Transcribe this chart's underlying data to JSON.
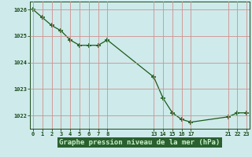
{
  "x_values": [
    0,
    1,
    2,
    3,
    4,
    5,
    6,
    7,
    8,
    13,
    14,
    15,
    16,
    17,
    21,
    22,
    23
  ],
  "y_values": [
    1026.0,
    1025.7,
    1025.4,
    1025.2,
    1024.85,
    1024.65,
    1024.65,
    1024.65,
    1024.85,
    1023.45,
    1022.65,
    1022.1,
    1021.85,
    1021.75,
    1021.95,
    1022.1,
    1022.1
  ],
  "xticks": [
    0,
    1,
    2,
    3,
    4,
    5,
    6,
    7,
    8,
    13,
    14,
    15,
    16,
    17,
    21,
    22,
    23
  ],
  "yticks": [
    1022,
    1023,
    1024,
    1025,
    1026
  ],
  "ylim": [
    1021.5,
    1026.3
  ],
  "xlim": [
    -0.3,
    23.3
  ],
  "xlabel": "Graphe pression niveau de la mer (hPa)",
  "line_color": "#1a5c1a",
  "marker_color": "#1a5c1a",
  "bg_color": "#ceeaea",
  "grid_color_v": "#c8b8b8",
  "grid_color_h": "#c8b8b8",
  "title_bg": "#2a6030",
  "title_color": "#c8f0c8",
  "tick_label_color": "#1a4a1a",
  "border_color": "#1a4a1a"
}
